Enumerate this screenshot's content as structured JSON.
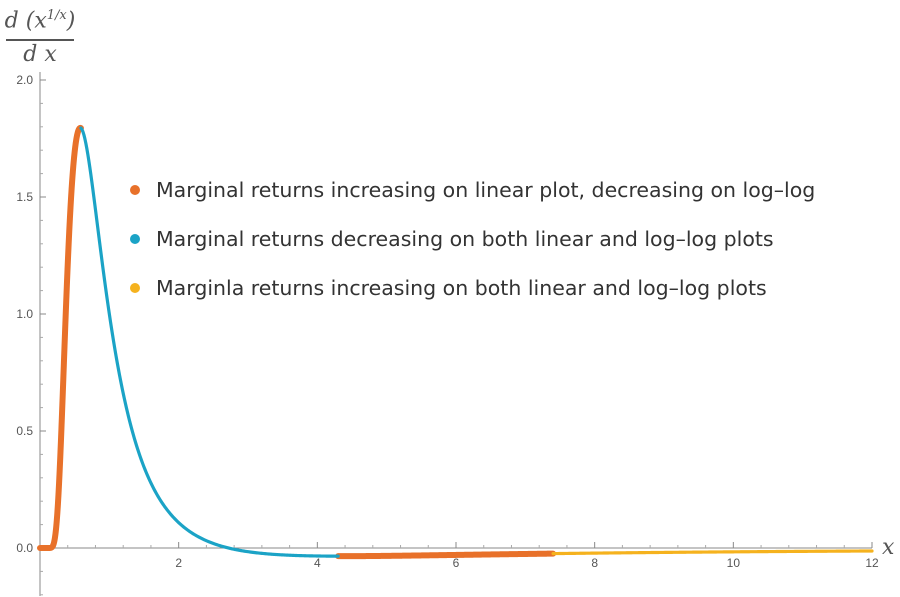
{
  "chart_data": {
    "type": "line",
    "title": "",
    "ylabel": {
      "num_d": "d",
      "num_base": "x",
      "num_exp": "1/x",
      "den": "d x"
    },
    "xlabel": "x",
    "xlim": [
      0,
      12
    ],
    "ylim": [
      -0.25,
      2.0
    ],
    "x_ticks": [
      {
        "value": 2,
        "label": "2"
      },
      {
        "value": 4,
        "label": "4"
      },
      {
        "value": 6,
        "label": "6"
      },
      {
        "value": 8,
        "label": "8"
      },
      {
        "value": 10,
        "label": "10"
      },
      {
        "value": 12,
        "label": "12"
      }
    ],
    "y_ticks": [
      {
        "value": 0.0,
        "label": "0.0"
      },
      {
        "value": 0.5,
        "label": "0.5"
      },
      {
        "value": 1.0,
        "label": "1.0"
      },
      {
        "value": 1.5,
        "label": "1.5"
      },
      {
        "value": 2.0,
        "label": "2.0"
      }
    ],
    "function": "derivative of x^(1/x)",
    "series": [
      {
        "name": "Marginal returns increasing on linear plot, decreasing on log–log",
        "color": "#E8712A",
        "ranges": [
          [
            0.0,
            0.59
          ],
          [
            4.3,
            7.4
          ]
        ]
      },
      {
        "name": "Marginal returns decreasing on both linear and log–log plots",
        "color": "#1BA3C6",
        "ranges": [
          [
            0.59,
            4.3
          ]
        ]
      },
      {
        "name": "Marginla returns increasing on both linear and log–log plots",
        "color": "#F5B21E",
        "ranges": [
          [
            7.4,
            12.0
          ]
        ]
      }
    ],
    "grid": false,
    "legend_position": "center"
  }
}
